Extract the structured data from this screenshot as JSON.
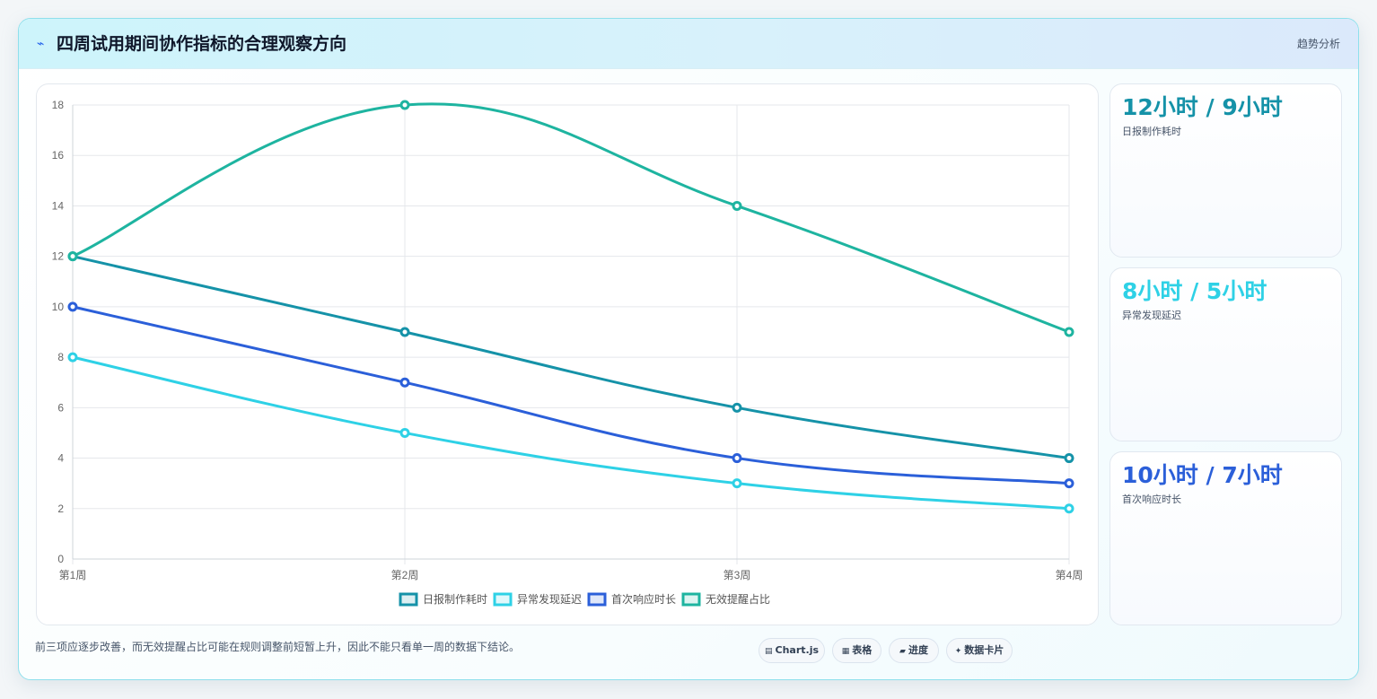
{
  "header": {
    "icon": "lightning-icon",
    "title": "四周试用期间协作指标的合理观察方向",
    "tag": "趋势分析"
  },
  "colors": {
    "series": [
      "#1592a8",
      "#2ed1e6",
      "#2b5fd9",
      "#1eb4a0"
    ],
    "grid": "#e5e7eb",
    "tick": "#666666"
  },
  "chart_data": {
    "type": "line",
    "categories": [
      "第1周",
      "第2周",
      "第3周",
      "第4周"
    ],
    "ylim": [
      0,
      18
    ],
    "yticks": [
      0,
      2,
      4,
      6,
      8,
      10,
      12,
      14,
      16,
      18
    ],
    "grid": true,
    "legend_position": "bottom",
    "series": [
      {
        "name": "日报制作耗时",
        "values": [
          12,
          9,
          6,
          4
        ]
      },
      {
        "name": "异常发现延迟",
        "values": [
          8,
          5,
          3,
          2
        ]
      },
      {
        "name": "首次响应时长",
        "values": [
          10,
          7,
          4,
          3
        ]
      },
      {
        "name": "无效提醒占比",
        "values": [
          12,
          18,
          14,
          9
        ]
      }
    ]
  },
  "side_cards": [
    {
      "value": "12小时 / 9小时",
      "label": "日报制作耗时",
      "color": "#1592a8"
    },
    {
      "value": "8小时 / 5小时",
      "label": "异常发现延迟",
      "color": "#2ed1e6"
    },
    {
      "value": "10小时 / 7小时",
      "label": "首次响应时长",
      "color": "#2b5fd9"
    }
  ],
  "footnote": "前三项应逐步改善，而无效提醒占比可能在规则调整前短暂上升，因此不能只看单一周的数据下结论。",
  "pills": [
    {
      "icon": "▤",
      "label": "Chart.js"
    },
    {
      "icon": "▦",
      "label": "表格"
    },
    {
      "icon": "▰",
      "label": "进度"
    },
    {
      "icon": "✦",
      "label": "数据卡片"
    }
  ]
}
